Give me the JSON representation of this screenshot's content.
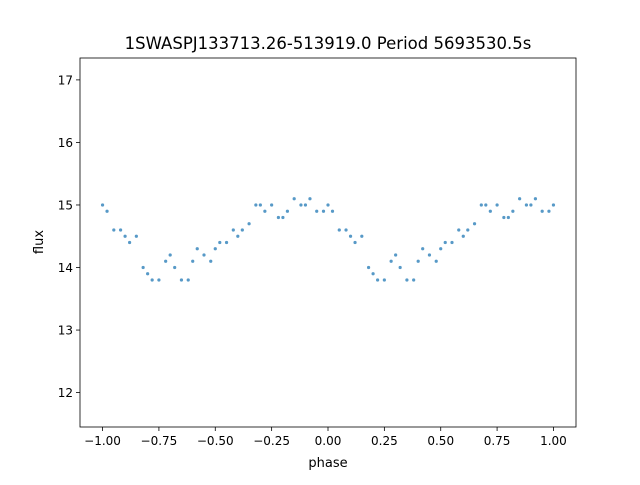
{
  "chart_data": {
    "type": "scatter",
    "title": "1SWASPJ133713.26-513919.0 Period 5693530.5s",
    "xlabel": "phase",
    "ylabel": "flux",
    "xlim": [
      -1.1,
      1.1
    ],
    "ylim": [
      11.45,
      17.35
    ],
    "x_ticks": [
      -1.0,
      -0.75,
      -0.5,
      -0.25,
      0.0,
      0.25,
      0.5,
      0.75,
      1.0
    ],
    "x_tick_labels": [
      "−1.00",
      "−0.75",
      "−0.50",
      "−0.25",
      "0.00",
      "0.25",
      "0.50",
      "0.75",
      "1.00"
    ],
    "y_ticks": [
      12,
      13,
      14,
      15,
      16,
      17
    ],
    "y_tick_labels": [
      "12",
      "13",
      "14",
      "15",
      "16",
      "17"
    ],
    "grid": false,
    "legend": "none",
    "marker_color": "#1f77b4",
    "series": [
      {
        "x": [
          -1.0,
          -0.98,
          -0.95,
          -0.92,
          -0.9,
          -0.88,
          -0.85,
          -0.82,
          -0.8,
          -0.78,
          -0.75,
          -0.72,
          -0.7,
          -0.68,
          -0.65,
          -0.62,
          -0.6,
          -0.58,
          -0.55,
          -0.52,
          -0.5,
          -0.48,
          -0.45,
          -0.42,
          -0.4,
          -0.38,
          -0.35,
          -0.32,
          -0.3,
          -0.28,
          -0.25,
          -0.22,
          -0.2,
          -0.18,
          -0.15,
          -0.12,
          -0.1,
          -0.08,
          -0.05,
          -0.02,
          0.0,
          0.02,
          0.05,
          0.08,
          0.1,
          0.12,
          0.15,
          0.18,
          0.2,
          0.22,
          0.25,
          0.28,
          0.3,
          0.32,
          0.35,
          0.38,
          0.4,
          0.42,
          0.45,
          0.48,
          0.5,
          0.52,
          0.55,
          0.58,
          0.6,
          0.62,
          0.65,
          0.68,
          0.7,
          0.72,
          0.75,
          0.78,
          0.8,
          0.82,
          0.85,
          0.88,
          0.9,
          0.92,
          0.95,
          0.98,
          1.0
        ],
        "y": [
          15.0,
          14.9,
          14.6,
          14.6,
          14.5,
          14.4,
          14.5,
          14.0,
          13.9,
          13.8,
          13.8,
          14.1,
          14.2,
          14.0,
          13.8,
          13.8,
          14.1,
          14.3,
          14.2,
          14.1,
          14.3,
          14.4,
          14.4,
          14.6,
          14.5,
          14.6,
          14.7,
          15.0,
          15.0,
          14.9,
          15.0,
          14.8,
          14.8,
          14.9,
          15.1,
          15.0,
          15.0,
          15.1,
          14.9,
          14.9,
          15.0,
          14.9,
          14.6,
          14.6,
          14.5,
          14.4,
          14.5,
          14.0,
          13.9,
          13.8,
          13.8,
          14.1,
          14.2,
          14.0,
          13.8,
          13.8,
          14.1,
          14.3,
          14.2,
          14.1,
          14.3,
          14.4,
          14.4,
          14.6,
          14.5,
          14.6,
          14.7,
          15.0,
          15.0,
          14.9,
          15.0,
          14.8,
          14.8,
          14.9,
          15.1,
          15.0,
          15.0,
          15.1,
          14.9,
          14.9,
          15.0
        ]
      }
    ]
  }
}
